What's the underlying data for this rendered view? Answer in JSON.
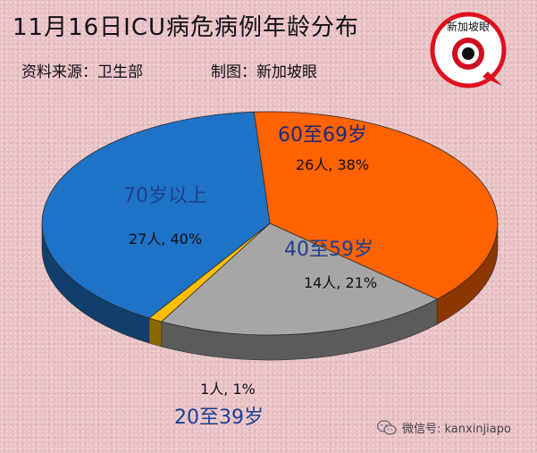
{
  "header": {
    "title": "11月16日ICU病危病例年龄分布",
    "source": "资料来源：卫生部",
    "maker": "制图：新加坡眼"
  },
  "logo": {
    "text": "新加坡眼"
  },
  "watermark": {
    "text": "微信号: kanxinjiapo"
  },
  "colors": {
    "seventy_plus": "#1f73c6",
    "sixty": "#ff6200",
    "forty": "#a6a6a6",
    "twenty": "#ffbf00",
    "label_blue": "#1f3f8f"
  },
  "chart_data": {
    "type": "pie",
    "title": "11月16日ICU病危病例年龄分布",
    "slices": [
      {
        "name": "60至69岁",
        "count": 26,
        "percent": 38,
        "count_label": "26人, 38%"
      },
      {
        "name": "40至59岁",
        "count": 14,
        "percent": 21,
        "count_label": "14人, 21%"
      },
      {
        "name": "20至39岁",
        "count": 1,
        "percent": 1,
        "count_label": "1人, 1%"
      },
      {
        "name": "70岁以上",
        "count": 27,
        "percent": 40,
        "count_label": "27人, 40%"
      }
    ]
  }
}
